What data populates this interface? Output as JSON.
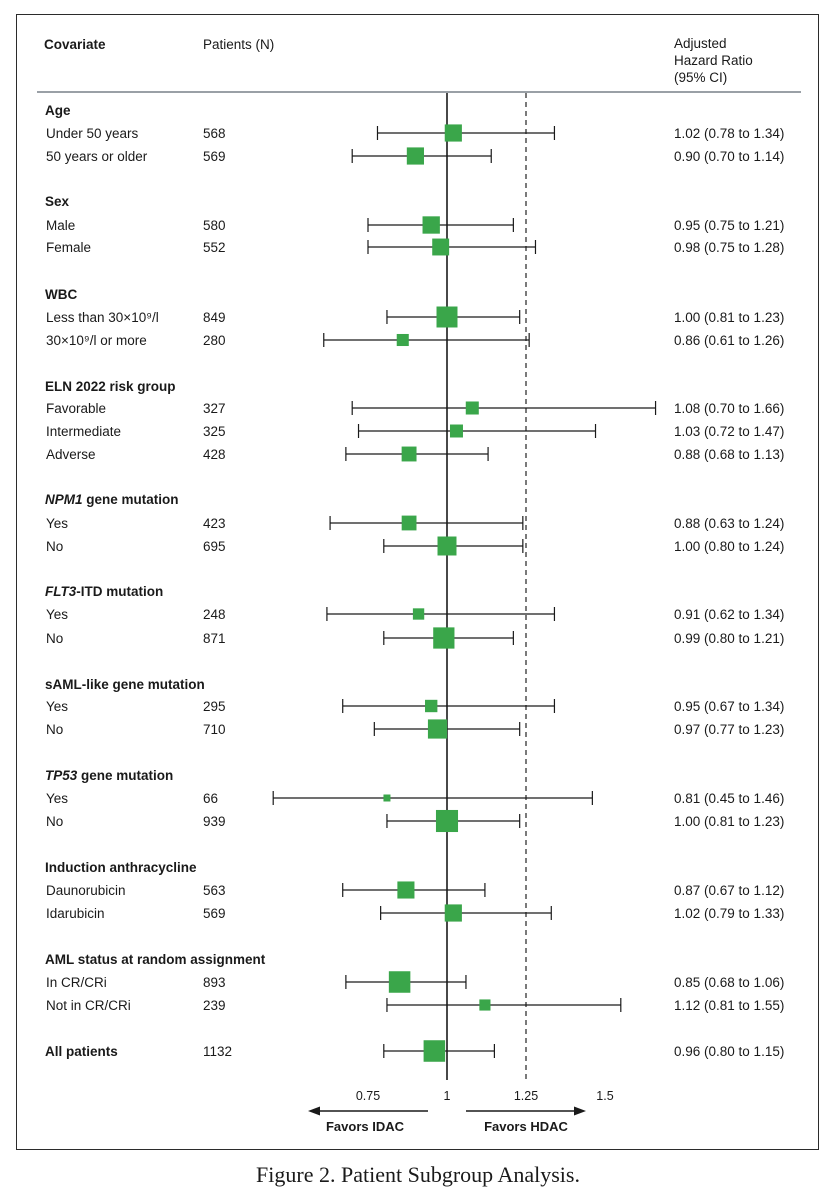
{
  "header": {
    "covariate": "Covariate",
    "patients": "Patients (N)",
    "hr_line1": "Adjusted",
    "hr_line2": "Hazard Ratio",
    "hr_line3": "(95% CI)"
  },
  "caption": {
    "label": "Figure 2.",
    "title": "Patient Subgroup Analysis."
  },
  "colors": {
    "marker": "#3aa64a",
    "line": "#1a1a1a",
    "reference_dashed": "#333333"
  },
  "chart_data": {
    "type": "forest",
    "title": "Patient Subgroup Analysis",
    "xlabel_left": "Favors IDAC",
    "xlabel_right": "Favors HDAC",
    "xlim": [
      0.5,
      1.56
    ],
    "ticks": [
      0.75,
      1,
      1.25,
      1.5
    ],
    "tick_labels": [
      "0.75",
      "1",
      "1.25",
      "1.5"
    ],
    "null_line": 1,
    "dashed_reference": 1.25,
    "groups": [
      {
        "label": "Age",
        "italic": "",
        "rows": [
          {
            "label": "Under 50 years",
            "n": "568",
            "hr": 1.02,
            "lo": 0.78,
            "hi": 1.34,
            "text": "1.02 (0.78 to 1.34)"
          },
          {
            "label": "50 years or older",
            "n": "569",
            "hr": 0.9,
            "lo": 0.7,
            "hi": 1.14,
            "text": "0.90 (0.70 to 1.14)"
          }
        ]
      },
      {
        "label": "Sex",
        "italic": "",
        "rows": [
          {
            "label": "Male",
            "n": "580",
            "hr": 0.95,
            "lo": 0.75,
            "hi": 1.21,
            "text": "0.95 (0.75 to 1.21)"
          },
          {
            "label": "Female",
            "n": "552",
            "hr": 0.98,
            "lo": 0.75,
            "hi": 1.28,
            "text": "0.98 (0.75 to 1.28)"
          }
        ]
      },
      {
        "label": "WBC",
        "italic": "",
        "rows": [
          {
            "label": "Less than 30×10⁹/l",
            "n": "849",
            "hr": 1.0,
            "lo": 0.81,
            "hi": 1.23,
            "text": "1.00 (0.81 to 1.23)"
          },
          {
            "label": "30×10⁹/l or more",
            "n": "280",
            "hr": 0.86,
            "lo": 0.61,
            "hi": 1.26,
            "text": "0.86 (0.61 to 1.26)"
          }
        ]
      },
      {
        "label": "ELN 2022 risk group",
        "italic": "",
        "rows": [
          {
            "label": "Favorable",
            "n": "327",
            "hr": 1.08,
            "lo": 0.7,
            "hi": 1.66,
            "text": "1.08 (0.70 to 1.66)"
          },
          {
            "label": "Intermediate",
            "n": "325",
            "hr": 1.03,
            "lo": 0.72,
            "hi": 1.47,
            "text": "1.03 (0.72 to 1.47)"
          },
          {
            "label": "Adverse",
            "n": "428",
            "hr": 0.88,
            "lo": 0.68,
            "hi": 1.13,
            "text": "0.88 (0.68 to 1.13)"
          }
        ]
      },
      {
        "label": " gene mutation",
        "italic": "NPM1",
        "rows": [
          {
            "label": "Yes",
            "n": "423",
            "hr": 0.88,
            "lo": 0.63,
            "hi": 1.24,
            "text": "0.88 (0.63 to 1.24)"
          },
          {
            "label": "No",
            "n": "695",
            "hr": 1.0,
            "lo": 0.8,
            "hi": 1.24,
            "text": "1.00 (0.80 to 1.24)"
          }
        ]
      },
      {
        "label": "-ITD mutation",
        "italic": "FLT3",
        "rows": [
          {
            "label": "Yes",
            "n": "248",
            "hr": 0.91,
            "lo": 0.62,
            "hi": 1.34,
            "text": "0.91 (0.62 to 1.34)"
          },
          {
            "label": "No",
            "n": "871",
            "hr": 0.99,
            "lo": 0.8,
            "hi": 1.21,
            "text": "0.99 (0.80 to 1.21)"
          }
        ]
      },
      {
        "label": "sAML-like gene mutation",
        "italic": "",
        "rows": [
          {
            "label": "Yes",
            "n": "295",
            "hr": 0.95,
            "lo": 0.67,
            "hi": 1.34,
            "text": "0.95 (0.67 to 1.34)"
          },
          {
            "label": "No",
            "n": "710",
            "hr": 0.97,
            "lo": 0.77,
            "hi": 1.23,
            "text": "0.97 (0.77 to 1.23)"
          }
        ]
      },
      {
        "label": " gene mutation",
        "italic": "TP53",
        "rows": [
          {
            "label": "Yes",
            "n": "66",
            "hr": 0.81,
            "lo": 0.45,
            "hi": 1.46,
            "text": "0.81 (0.45 to 1.46)"
          },
          {
            "label": "No",
            "n": "939",
            "hr": 1.0,
            "lo": 0.81,
            "hi": 1.23,
            "text": "1.00 (0.81 to 1.23)"
          }
        ]
      },
      {
        "label": "Induction anthracycline",
        "italic": "",
        "rows": [
          {
            "label": "Daunorubicin",
            "n": "563",
            "hr": 0.87,
            "lo": 0.67,
            "hi": 1.12,
            "text": "0.87 (0.67 to 1.12)"
          },
          {
            "label": "Idarubicin",
            "n": "569",
            "hr": 1.02,
            "lo": 0.79,
            "hi": 1.33,
            "text": "1.02 (0.79 to 1.33)"
          }
        ]
      },
      {
        "label": "AML status at random assignment",
        "italic": "",
        "rows": [
          {
            "label": "In CR/CRi",
            "n": "893",
            "hr": 0.85,
            "lo": 0.68,
            "hi": 1.06,
            "text": "0.85 (0.68 to 1.06)"
          },
          {
            "label": "Not in CR/CRi",
            "n": "239",
            "hr": 1.12,
            "lo": 0.81,
            "hi": 1.55,
            "text": "1.12 (0.81 to 1.55)"
          }
        ]
      }
    ],
    "overall": {
      "label": "All patients",
      "n": "1132",
      "hr": 0.96,
      "lo": 0.8,
      "hi": 1.15,
      "text": "0.96 (0.80 to 1.15)"
    }
  }
}
